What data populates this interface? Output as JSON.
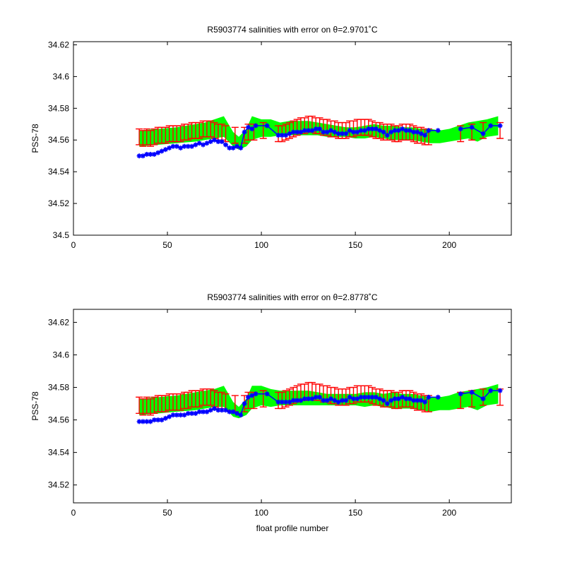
{
  "chart_data": [
    {
      "type": "scatter",
      "title": "R5903774 salinities with error on θ=2.9701˚C",
      "xlabel": "",
      "ylabel": "PSS-78",
      "xlim": [
        0,
        233
      ],
      "ylim": [
        34.5,
        34.622
      ],
      "xticks": [
        "0",
        "50",
        "100",
        "150",
        "200"
      ],
      "yticks": [
        "34.5",
        "34.52",
        "34.54",
        "34.56",
        "34.58",
        "34.6",
        "34.62"
      ],
      "grid": false,
      "colors": {
        "band": "#00ff00",
        "error": "#ff0000",
        "float": "#0000ff"
      },
      "band": {
        "x": [
          35,
          45,
          55,
          65,
          70,
          75,
          80,
          85,
          88,
          92,
          95,
          100,
          105,
          110,
          115,
          120,
          125,
          130,
          135,
          140,
          145,
          150,
          155,
          160,
          165,
          170,
          175,
          180,
          185,
          190,
          195,
          200,
          205,
          210,
          215,
          220,
          226
        ],
        "upper": [
          34.566,
          34.567,
          34.568,
          34.57,
          34.571,
          34.573,
          34.575,
          34.565,
          34.562,
          34.567,
          34.575,
          34.573,
          34.573,
          34.571,
          34.572,
          34.572,
          34.572,
          34.571,
          34.57,
          34.569,
          34.568,
          34.568,
          34.569,
          34.57,
          34.569,
          34.569,
          34.568,
          34.568,
          34.567,
          34.567,
          34.566,
          34.567,
          34.569,
          34.571,
          34.572,
          34.573,
          34.575
        ],
        "lower": [
          34.556,
          34.557,
          34.558,
          34.559,
          34.56,
          34.561,
          34.562,
          34.556,
          34.554,
          34.556,
          34.56,
          34.562,
          34.562,
          34.563,
          34.563,
          34.563,
          34.563,
          34.563,
          34.562,
          34.562,
          34.562,
          34.561,
          34.561,
          34.562,
          34.561,
          34.56,
          34.56,
          34.56,
          34.559,
          34.558,
          34.558,
          34.559,
          34.56,
          34.561,
          34.559,
          34.562,
          34.563
        ]
      },
      "mapped": {
        "x": [
          35,
          37,
          39,
          41,
          43,
          45,
          47,
          49,
          51,
          53,
          55,
          57,
          59,
          61,
          63,
          65,
          67,
          69,
          71,
          73,
          75,
          77,
          79,
          81,
          86,
          91,
          93,
          96,
          101,
          109,
          111,
          113,
          115,
          117,
          119,
          121,
          123,
          125,
          127,
          129,
          131,
          133,
          135,
          137,
          139,
          141,
          143,
          145,
          147,
          149,
          151,
          153,
          155,
          157,
          159,
          161,
          163,
          165,
          167,
          169,
          171,
          173,
          175,
          177,
          179,
          181,
          183,
          185,
          187,
          189,
          206,
          212,
          218,
          227
        ],
        "y": [
          34.562,
          34.561,
          34.562,
          34.561,
          34.562,
          34.563,
          34.563,
          34.563,
          34.564,
          34.564,
          34.564,
          34.564,
          34.565,
          34.565,
          34.566,
          34.566,
          34.566,
          34.567,
          34.567,
          34.567,
          34.566,
          34.565,
          34.565,
          34.564,
          34.563,
          34.563,
          34.565,
          34.565,
          34.566,
          34.564,
          34.564,
          34.565,
          34.566,
          34.567,
          34.568,
          34.569,
          34.569,
          34.57,
          34.57,
          34.569,
          34.569,
          34.568,
          34.568,
          34.567,
          34.567,
          34.566,
          34.566,
          34.566,
          34.567,
          34.567,
          34.568,
          34.568,
          34.568,
          34.568,
          34.567,
          34.566,
          34.566,
          34.565,
          34.565,
          34.565,
          34.564,
          34.564,
          34.565,
          34.565,
          34.565,
          34.564,
          34.563,
          34.563,
          34.562,
          34.562,
          34.564,
          34.565,
          34.566,
          34.566
        ],
        "err": 0.005
      },
      "float": {
        "x": [
          35,
          37,
          39,
          41,
          43,
          45,
          47,
          49,
          51,
          53,
          55,
          57,
          59,
          61,
          63,
          65,
          67,
          69,
          71,
          73,
          75,
          77,
          79,
          81,
          83,
          85,
          87,
          89,
          91,
          93,
          95,
          97,
          103,
          109,
          111,
          113,
          115,
          117,
          119,
          121,
          123,
          125,
          127,
          129,
          131,
          133,
          135,
          137,
          139,
          141,
          143,
          145,
          147,
          149,
          151,
          153,
          155,
          157,
          159,
          161,
          163,
          165,
          167,
          169,
          171,
          173,
          175,
          177,
          179,
          181,
          183,
          185,
          187,
          189,
          194,
          206,
          212,
          218,
          222,
          227
        ],
        "y": [
          34.55,
          34.55,
          34.551,
          34.551,
          34.551,
          34.552,
          34.553,
          34.554,
          34.555,
          34.556,
          34.556,
          34.555,
          34.556,
          34.556,
          34.556,
          34.557,
          34.558,
          34.557,
          34.558,
          34.559,
          34.56,
          34.559,
          34.559,
          34.557,
          34.555,
          34.555,
          34.556,
          34.555,
          34.565,
          34.568,
          34.567,
          34.569,
          34.569,
          34.563,
          34.563,
          34.563,
          34.564,
          34.565,
          34.565,
          34.565,
          34.566,
          34.566,
          34.566,
          34.567,
          34.567,
          34.565,
          34.565,
          34.566,
          34.565,
          34.564,
          34.564,
          34.564,
          34.566,
          34.565,
          34.565,
          34.566,
          34.566,
          34.567,
          34.567,
          34.567,
          34.566,
          34.565,
          34.563,
          34.565,
          34.566,
          34.566,
          34.567,
          34.566,
          34.566,
          34.565,
          34.565,
          34.564,
          34.563,
          34.566,
          34.566,
          34.567,
          34.568,
          34.564,
          34.569,
          34.569
        ]
      }
    },
    {
      "type": "scatter",
      "title": "R5903774 salinities with error on θ=2.8778˚C",
      "xlabel": "float profile number",
      "ylabel": "PSS-78",
      "xlim": [
        0,
        233
      ],
      "ylim": [
        34.509,
        34.628
      ],
      "xticks": [
        "0",
        "50",
        "100",
        "150",
        "200"
      ],
      "yticks": [
        "34.52",
        "34.54",
        "34.56",
        "34.58",
        "34.6",
        "34.62"
      ],
      "grid": false,
      "colors": {
        "band": "#00ff00",
        "error": "#ff0000",
        "float": "#0000ff"
      },
      "band": {
        "x": [
          35,
          45,
          55,
          65,
          70,
          75,
          80,
          85,
          88,
          92,
          95,
          100,
          105,
          110,
          115,
          120,
          125,
          130,
          135,
          140,
          145,
          150,
          155,
          160,
          165,
          170,
          175,
          180,
          185,
          190,
          195,
          200,
          205,
          210,
          215,
          220,
          226
        ],
        "upper": [
          34.573,
          34.574,
          34.575,
          34.577,
          34.578,
          34.579,
          34.581,
          34.571,
          34.568,
          34.573,
          34.581,
          34.581,
          34.579,
          34.578,
          34.578,
          34.578,
          34.578,
          34.577,
          34.576,
          34.576,
          34.576,
          34.576,
          34.577,
          34.577,
          34.576,
          34.577,
          34.576,
          34.576,
          34.575,
          34.574,
          34.574,
          34.575,
          34.577,
          34.578,
          34.579,
          34.58,
          34.582
        ],
        "lower": [
          34.563,
          34.564,
          34.565,
          34.566,
          34.567,
          34.568,
          34.568,
          34.562,
          34.561,
          34.563,
          34.567,
          34.569,
          34.568,
          34.569,
          34.569,
          34.569,
          34.569,
          34.569,
          34.569,
          34.569,
          34.569,
          34.569,
          34.568,
          34.569,
          34.568,
          34.567,
          34.567,
          34.567,
          34.566,
          34.565,
          34.566,
          34.566,
          34.567,
          34.568,
          34.566,
          34.569,
          34.57
        ]
      },
      "mapped": {
        "x": [
          35,
          37,
          39,
          41,
          43,
          45,
          47,
          49,
          51,
          53,
          55,
          57,
          59,
          61,
          63,
          65,
          67,
          69,
          71,
          73,
          75,
          77,
          79,
          81,
          86,
          91,
          93,
          96,
          101,
          109,
          111,
          113,
          115,
          117,
          119,
          121,
          123,
          125,
          127,
          129,
          131,
          133,
          135,
          137,
          139,
          141,
          143,
          145,
          147,
          149,
          151,
          153,
          155,
          157,
          159,
          161,
          163,
          165,
          167,
          169,
          171,
          173,
          175,
          177,
          179,
          181,
          183,
          185,
          187,
          189,
          206,
          212,
          218,
          227
        ],
        "y": [
          34.569,
          34.568,
          34.569,
          34.568,
          34.569,
          34.57,
          34.57,
          34.57,
          34.571,
          34.571,
          34.571,
          34.571,
          34.572,
          34.572,
          34.573,
          34.573,
          34.573,
          34.574,
          34.574,
          34.574,
          34.573,
          34.572,
          34.572,
          34.571,
          34.57,
          34.57,
          34.572,
          34.572,
          34.573,
          34.572,
          34.572,
          34.573,
          34.574,
          34.575,
          34.576,
          34.577,
          34.577,
          34.578,
          34.578,
          34.577,
          34.577,
          34.576,
          34.576,
          34.575,
          34.575,
          34.574,
          34.574,
          34.574,
          34.575,
          34.575,
          34.576,
          34.576,
          34.576,
          34.576,
          34.575,
          34.574,
          34.574,
          34.573,
          34.573,
          34.573,
          34.572,
          34.572,
          34.573,
          34.573,
          34.573,
          34.572,
          34.571,
          34.571,
          34.57,
          34.57,
          34.572,
          34.573,
          34.574,
          34.574
        ],
        "err": 0.005
      },
      "float": {
        "x": [
          35,
          37,
          39,
          41,
          43,
          45,
          47,
          49,
          51,
          53,
          55,
          57,
          59,
          61,
          63,
          65,
          67,
          69,
          71,
          73,
          75,
          77,
          79,
          81,
          83,
          85,
          87,
          89,
          91,
          93,
          95,
          97,
          103,
          109,
          111,
          113,
          115,
          117,
          119,
          121,
          123,
          125,
          127,
          129,
          131,
          133,
          135,
          137,
          139,
          141,
          143,
          145,
          147,
          149,
          151,
          153,
          155,
          157,
          159,
          161,
          163,
          165,
          167,
          169,
          171,
          173,
          175,
          177,
          179,
          181,
          183,
          185,
          187,
          189,
          194,
          206,
          212,
          218,
          222,
          227
        ],
        "y": [
          34.559,
          34.559,
          34.559,
          34.559,
          34.56,
          34.56,
          34.56,
          34.561,
          34.562,
          34.563,
          34.563,
          34.563,
          34.563,
          34.564,
          34.564,
          34.564,
          34.565,
          34.565,
          34.565,
          34.566,
          34.567,
          34.566,
          34.566,
          34.566,
          34.565,
          34.565,
          34.564,
          34.563,
          34.57,
          34.574,
          34.575,
          34.576,
          34.576,
          34.571,
          34.571,
          34.571,
          34.571,
          34.572,
          34.572,
          34.572,
          34.573,
          34.573,
          34.573,
          34.574,
          34.574,
          34.572,
          34.572,
          34.573,
          34.572,
          34.571,
          34.572,
          34.572,
          34.574,
          34.573,
          34.573,
          34.574,
          34.574,
          34.574,
          34.574,
          34.574,
          34.573,
          34.572,
          34.57,
          34.572,
          34.573,
          34.573,
          34.574,
          34.573,
          34.573,
          34.572,
          34.572,
          34.572,
          34.571,
          34.574,
          34.574,
          34.576,
          34.577,
          34.573,
          34.578,
          34.578
        ]
      }
    }
  ]
}
